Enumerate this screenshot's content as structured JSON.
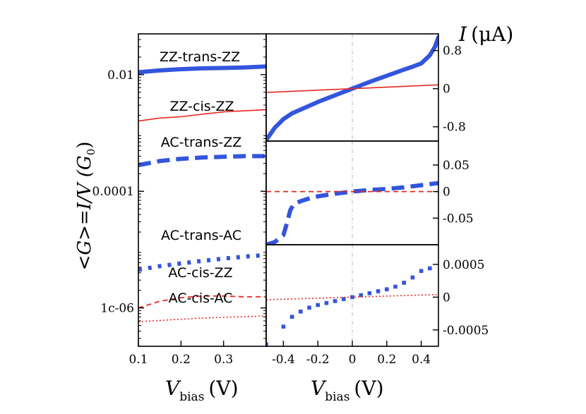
{
  "colors": {
    "blue": "#3355dd",
    "red": "#e8281e",
    "axis": "#000000",
    "guide": "#b0b0c8"
  },
  "chart_data": [
    {
      "id": "left",
      "type": "line",
      "title": "",
      "ylabel": "<G>=I/V (G0)",
      "xlabel": "Vbias (V)",
      "yscale": "log",
      "xlim": [
        0.1,
        0.4
      ],
      "ylim": [
        2.2e-07,
        0.05
      ],
      "xticks": [
        0.1,
        0.2,
        0.3
      ],
      "xticklabels": [
        "0.1",
        "0.2",
        "0.3"
      ],
      "yticks": [
        0.01,
        0.0001,
        1e-06
      ],
      "yticklabels": [
        "0.01",
        "0.0001",
        "1c-06"
      ],
      "series": [
        {
          "name": "ZZ-trans-ZZ",
          "color": "blue",
          "style": "thick",
          "x": [
            0.1,
            0.15,
            0.2,
            0.25,
            0.3,
            0.35,
            0.4
          ],
          "y": [
            0.011,
            0.0118,
            0.0124,
            0.0128,
            0.013,
            0.0133,
            0.0138
          ]
        },
        {
          "name": "ZZ-cis-ZZ",
          "color": "red",
          "style": "thin",
          "x": [
            0.1,
            0.15,
            0.2,
            0.25,
            0.3,
            0.35,
            0.4
          ],
          "y": [
            0.0016,
            0.0018,
            0.0019,
            0.0021,
            0.0023,
            0.0024,
            0.0025
          ]
        },
        {
          "name": "AC-trans-ZZ",
          "color": "blue",
          "style": "thickdash",
          "x": [
            0.1,
            0.15,
            0.2,
            0.25,
            0.3,
            0.35,
            0.4
          ],
          "y": [
            0.00028,
            0.00033,
            0.00036,
            0.00038,
            0.00039,
            0.0004,
            0.0004
          ]
        },
        {
          "name": "AC-trans-AC",
          "color": "blue",
          "style": "dot",
          "x": [
            0.1,
            0.15,
            0.2,
            0.25,
            0.3,
            0.35,
            0.4
          ],
          "y": [
            4.5e-06,
            5.2e-06,
            5.8e-06,
            6.4e-06,
            7e-06,
            7.6e-06,
            8.1e-06
          ]
        },
        {
          "name": "AC-cis-ZZ",
          "color": "red",
          "style": "dash",
          "x": [
            0.1,
            0.15,
            0.2,
            0.25,
            0.3,
            0.35,
            0.4
          ],
          "y": [
            1e-06,
            1.3e-06,
            1.5e-06,
            1.6e-06,
            1.6e-06,
            1.55e-06,
            1.55e-06
          ]
        },
        {
          "name": "AC-cis-AC",
          "color": "red",
          "style": "thindot",
          "x": [
            0.1,
            0.15,
            0.2,
            0.25,
            0.3,
            0.35,
            0.4
          ],
          "y": [
            5.8e-07,
            6.1e-07,
            6.4e-07,
            6.7e-07,
            6.9e-07,
            7.1e-07,
            7.3e-07
          ]
        }
      ],
      "annotations": [
        "ZZ-trans-ZZ",
        "ZZ-cis-ZZ",
        "AC-trans-ZZ",
        "AC-trans-AC",
        "AC-cis-ZZ",
        "AC-cis-AC"
      ]
    },
    {
      "id": "top-right",
      "type": "line",
      "title": "I (μA)",
      "xlim": [
        -0.5,
        0.5
      ],
      "ylim": [
        -1.1,
        1.15
      ],
      "yticks": [
        0.8,
        0,
        -0.8
      ],
      "yticklabels": [
        "0.8",
        "0",
        "-0.8"
      ],
      "series": [
        {
          "name": "ZZ-trans-ZZ",
          "color": "blue",
          "style": "thick",
          "x": [
            -0.5,
            -0.45,
            -0.4,
            -0.35,
            -0.3,
            -0.2,
            -0.1,
            0,
            0.1,
            0.2,
            0.3,
            0.35,
            0.4,
            0.45,
            0.48,
            0.5
          ],
          "y": [
            -1.08,
            -0.82,
            -0.64,
            -0.52,
            -0.44,
            -0.28,
            -0.14,
            0,
            0.14,
            0.27,
            0.4,
            0.46,
            0.53,
            0.7,
            0.88,
            1.08
          ]
        },
        {
          "name": "ZZ-cis-ZZ",
          "color": "red",
          "style": "thin",
          "x": [
            -0.5,
            0,
            0.5
          ],
          "y": [
            -0.08,
            0,
            0.08
          ]
        }
      ]
    },
    {
      "id": "middle-right",
      "type": "line",
      "title": "",
      "xlim": [
        -0.5,
        0.5
      ],
      "ylim": [
        -0.1,
        0.095
      ],
      "yticks": [
        0.05,
        0,
        -0.05
      ],
      "yticklabels": [
        "0.05",
        "0",
        "-0.05"
      ],
      "series": [
        {
          "name": "AC-trans-ZZ",
          "color": "blue",
          "style": "thickdash",
          "x": [
            -0.5,
            -0.45,
            -0.4,
            -0.38,
            -0.36,
            -0.34,
            -0.3,
            -0.25,
            -0.2,
            -0.1,
            0,
            0.1,
            0.2,
            0.3,
            0.4,
            0.5
          ],
          "y": [
            -0.1,
            -0.095,
            -0.082,
            -0.06,
            -0.035,
            -0.024,
            -0.018,
            -0.013,
            -0.009,
            -0.004,
            0,
            0.003,
            0.005,
            0.008,
            0.012,
            0.016
          ]
        },
        {
          "name": "AC-cis-ZZ",
          "color": "red",
          "style": "dash",
          "x": [
            -0.5,
            0,
            0.5
          ],
          "y": [
            0,
            0,
            0
          ]
        }
      ]
    },
    {
      "id": "bottom-right",
      "type": "scatter",
      "title": "",
      "xlabel": "Vbias (V)",
      "xlim": [
        -0.5,
        0.5
      ],
      "ylim": [
        -0.00075,
        0.0008
      ],
      "xticks": [
        -0.4,
        -0.2,
        0,
        0.2,
        0.4
      ],
      "xticklabels": [
        "-0.4",
        "-0.2",
        "0",
        "0.2",
        "0.4"
      ],
      "yticks": [
        0.0005,
        0,
        -0.0005
      ],
      "yticklabels": [
        "0.0005",
        "0",
        "-0.0005"
      ],
      "series": [
        {
          "name": "AC-trans-AC",
          "color": "blue",
          "style": "squares",
          "x": [
            -0.5,
            -0.4,
            -0.35,
            -0.3,
            -0.25,
            -0.2,
            -0.15,
            -0.1,
            -0.05,
            0,
            0.05,
            0.1,
            0.15,
            0.2,
            0.25,
            0.3,
            0.35,
            0.4,
            0.45
          ],
          "y": [
            -0.00072,
            -0.00045,
            -0.0003,
            -0.00022,
            -0.00016,
            -0.00012,
            -9e-05,
            -6e-05,
            -3e-05,
            0,
            3e-05,
            6e-05,
            9e-05,
            0.00012,
            0.00016,
            0.00022,
            0.0003,
            0.0004,
            0.00044
          ]
        },
        {
          "name": "AC-cis-AC",
          "color": "red",
          "style": "thindot",
          "x": [
            -0.5,
            0,
            0.5
          ],
          "y": [
            -4e-05,
            0,
            4e-05
          ]
        }
      ]
    }
  ],
  "labels": {
    "left_ylabel": "<G>=I/V (G",
    "left_ylabel_sub": "0",
    "left_ylabel_end": ")",
    "right_ylabel_I": "I",
    "right_ylabel_unit": "(μA)",
    "xlabel_V": "V",
    "xlabel_sub": "bias",
    "xlabel_unit": "(V)"
  }
}
